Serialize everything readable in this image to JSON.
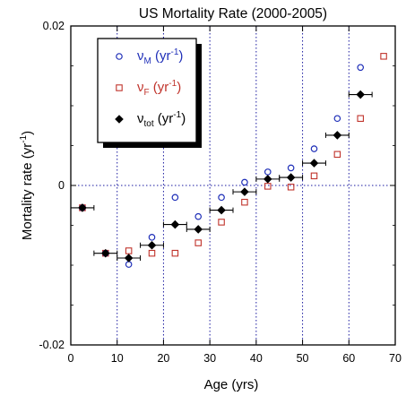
{
  "chart_data": {
    "type": "scatter",
    "title": "US Mortality Rate (2000-2005)",
    "xlabel": "Age (yrs)",
    "ylabel": {
      "base": "Mortality rate (yr",
      "sup": "-1",
      "close": ")"
    },
    "xlim": [
      0,
      70
    ],
    "ylim": [
      -0.02,
      0.02
    ],
    "xticks": [
      0,
      10,
      20,
      30,
      40,
      50,
      60,
      70
    ],
    "yticks": [
      -0.02,
      0,
      0.02
    ],
    "ytick_labels": [
      "-0.02",
      "0",
      "0.02"
    ],
    "grid": "dotted vertical lines at x = 10, 20, 30, 40, 50, 60 and horizontal line at y = 0",
    "legend_position": "top-left",
    "colors": {
      "M": "#1f2fb8",
      "F": "#c0332b",
      "tot": "#000000",
      "grid": "#1a1aa0"
    },
    "series": [
      {
        "key": "M",
        "legend": {
          "sym": "ν",
          "sub": "M",
          "open": " (yr",
          "sup": "-1",
          "close": ")"
        },
        "marker": "open-circle",
        "points": [
          [
            2.5,
            -0.0028
          ],
          [
            7.5,
            -0.0085
          ],
          [
            12.5,
            -0.0099
          ],
          [
            17.5,
            -0.0065
          ],
          [
            22.5,
            -0.0015
          ],
          [
            27.5,
            -0.0039
          ],
          [
            32.5,
            -0.0015
          ],
          [
            37.5,
            0.0004
          ],
          [
            42.5,
            0.0017
          ],
          [
            47.5,
            0.0022
          ],
          [
            52.5,
            0.0046
          ],
          [
            57.5,
            0.0084
          ],
          [
            62.5,
            0.0148
          ]
        ]
      },
      {
        "key": "F",
        "legend": {
          "sym": "ν",
          "sub": "F",
          "open": " (yr",
          "sup": "-1",
          "close": ")"
        },
        "marker": "open-square",
        "points": [
          [
            2.5,
            -0.0028
          ],
          [
            7.5,
            -0.0085
          ],
          [
            12.5,
            -0.0082
          ],
          [
            17.5,
            -0.0085
          ],
          [
            22.5,
            -0.0085
          ],
          [
            27.5,
            -0.0072
          ],
          [
            32.5,
            -0.0046
          ],
          [
            37.5,
            -0.0021
          ],
          [
            42.5,
            -0.0001
          ],
          [
            47.5,
            -0.0002
          ],
          [
            52.5,
            0.0012
          ],
          [
            57.5,
            0.0039
          ],
          [
            62.5,
            0.0084
          ],
          [
            67.5,
            0.0162
          ]
        ]
      },
      {
        "key": "tot",
        "legend": {
          "sym": "ν",
          "sub": "tot",
          "open": " (yr",
          "sup": "-1",
          "close": ")"
        },
        "marker": "filled-diamond",
        "error_x": 2.5,
        "points": [
          [
            2.5,
            -0.0028
          ],
          [
            7.5,
            -0.0085
          ],
          [
            12.5,
            -0.0091
          ],
          [
            17.5,
            -0.0075
          ],
          [
            22.5,
            -0.0049
          ],
          [
            27.5,
            -0.0055
          ],
          [
            32.5,
            -0.0031
          ],
          [
            37.5,
            -0.0008
          ],
          [
            42.5,
            0.0008
          ],
          [
            47.5,
            0.001
          ],
          [
            52.5,
            0.0028
          ],
          [
            57.5,
            0.0063
          ],
          [
            62.5,
            0.0114
          ]
        ]
      }
    ]
  }
}
